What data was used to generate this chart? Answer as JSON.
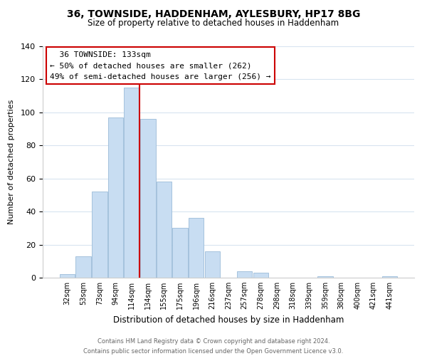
{
  "title": "36, TOWNSIDE, HADDENHAM, AYLESBURY, HP17 8BG",
  "subtitle": "Size of property relative to detached houses in Haddenham",
  "xlabel": "Distribution of detached houses by size in Haddenham",
  "ylabel": "Number of detached properties",
  "footer_line1": "Contains HM Land Registry data © Crown copyright and database right 2024.",
  "footer_line2": "Contains public sector information licensed under the Open Government Licence v3.0.",
  "categories": [
    "32sqm",
    "53sqm",
    "73sqm",
    "94sqm",
    "114sqm",
    "134sqm",
    "155sqm",
    "175sqm",
    "196sqm",
    "216sqm",
    "237sqm",
    "257sqm",
    "278sqm",
    "298sqm",
    "318sqm",
    "339sqm",
    "359sqm",
    "380sqm",
    "400sqm",
    "421sqm",
    "441sqm"
  ],
  "values": [
    2,
    13,
    52,
    97,
    115,
    96,
    58,
    30,
    36,
    16,
    0,
    4,
    3,
    0,
    0,
    0,
    1,
    0,
    0,
    0,
    1
  ],
  "bar_color": "#c8ddf2",
  "bar_edge_color": "#9bbbd8",
  "vline_x": 4.5,
  "vline_color": "#cc0000",
  "annotation_title": "36 TOWNSIDE: 133sqm",
  "annotation_line1": "← 50% of detached houses are smaller (262)",
  "annotation_line2": "49% of semi-detached houses are larger (256) →",
  "annotation_box_color": "#ffffff",
  "annotation_box_edge": "#cc0000",
  "ylim": [
    0,
    140
  ],
  "yticks": [
    0,
    20,
    40,
    60,
    80,
    100,
    120,
    140
  ],
  "background_color": "#ffffff",
  "grid_color": "#d8e4f0"
}
